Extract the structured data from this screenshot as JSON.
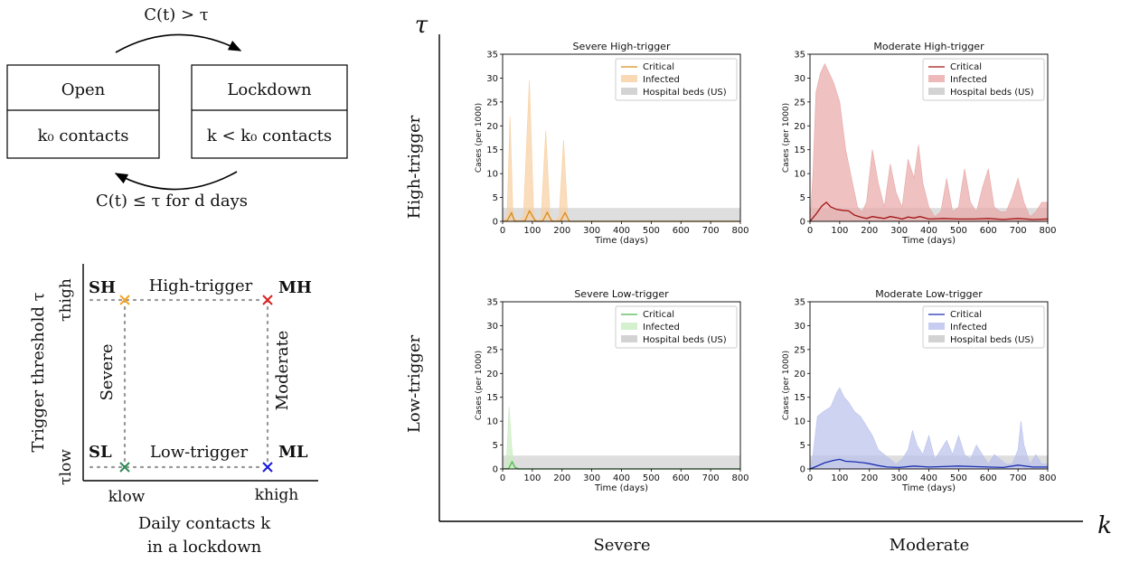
{
  "flow": {
    "arrow_top": "C(t) > τ",
    "arrow_bottom": "C(t) ≤ τ  for d days",
    "open_title": "Open",
    "open_sub": "k₀  contacts",
    "lock_title": "Lockdown",
    "lock_sub": "k < k₀  contacts"
  },
  "scenario": {
    "ylabel": "Trigger threshold τ",
    "xlabel_line1": "Daily contacts k",
    "xlabel_line2": "in a lockdown",
    "tau_high": "τhigh",
    "tau_low": "τlow",
    "k_low": "klow",
    "k_high": "khigh",
    "high_trigger": "High-trigger",
    "low_trigger": "Low-trigger",
    "severe": "Severe",
    "moderate": "Moderate",
    "points": [
      {
        "label": "SH",
        "color": "#f5a623"
      },
      {
        "label": "MH",
        "color": "#dd2222"
      },
      {
        "label": "SL",
        "color": "#2e8b57"
      },
      {
        "label": "ML",
        "color": "#1a1adc"
      }
    ]
  },
  "grid": {
    "tau_axis": "τ",
    "k_axis": "k",
    "row_high": "High-trigger",
    "row_low": "Low-trigger",
    "col_severe": "Severe",
    "col_moderate": "Moderate"
  },
  "chart_data": [
    {
      "type": "area",
      "title": "Severe High-trigger",
      "xlabel": "Time (days)",
      "ylabel": "Cases (per 1000)",
      "xlim": [
        0,
        800
      ],
      "ylim": [
        0,
        35
      ],
      "xticks": [
        0,
        100,
        200,
        300,
        400,
        500,
        600,
        700,
        800
      ],
      "yticks": [
        0,
        5,
        10,
        15,
        20,
        25,
        30,
        35
      ],
      "color_infected": "#f7cfa0",
      "color_critical": "#d98c1a",
      "hospital_beds": 2.8,
      "legend": [
        "Critical",
        "Infected",
        "Hospital beds (US)"
      ],
      "infected": {
        "x": [
          0,
          15,
          25,
          35,
          50,
          70,
          90,
          105,
          120,
          130,
          145,
          160,
          175,
          190,
          205,
          220,
          800
        ],
        "y": [
          0,
          1,
          22,
          1,
          0,
          1,
          29.5,
          1,
          0,
          1,
          19,
          0.8,
          0,
          1,
          17,
          0,
          0
        ]
      },
      "critical": {
        "x": [
          0,
          15,
          30,
          40,
          60,
          75,
          90,
          110,
          125,
          135,
          150,
          165,
          180,
          195,
          210,
          225,
          800
        ],
        "y": [
          0,
          0.1,
          1.8,
          0.1,
          0,
          0.1,
          2.2,
          0.1,
          0,
          0.1,
          1.9,
          0.1,
          0,
          0.1,
          1.8,
          0,
          0
        ]
      }
    },
    {
      "type": "area",
      "title": "Moderate High-trigger",
      "xlabel": "Time (days)",
      "ylabel": "Cases (per 1000)",
      "xlim": [
        0,
        800
      ],
      "ylim": [
        0,
        35
      ],
      "xticks": [
        0,
        100,
        200,
        300,
        400,
        500,
        600,
        700,
        800
      ],
      "yticks": [
        0,
        5,
        10,
        15,
        20,
        25,
        30,
        35
      ],
      "color_infected": "#e8a7a7",
      "color_critical": "#a31515",
      "hospital_beds": 2.8,
      "legend": [
        "Critical",
        "Infected",
        "Hospital beds (US)"
      ],
      "infected": {
        "x": [
          0,
          10,
          20,
          35,
          50,
          65,
          80,
          100,
          120,
          140,
          160,
          175,
          190,
          210,
          230,
          250,
          270,
          290,
          310,
          330,
          350,
          365,
          380,
          400,
          420,
          440,
          460,
          480,
          500,
          520,
          540,
          560,
          580,
          600,
          620,
          640,
          660,
          680,
          700,
          720,
          740,
          760,
          780,
          800
        ],
        "y": [
          0,
          10,
          27,
          31,
          33,
          31,
          29,
          25,
          15,
          9,
          3,
          2,
          4,
          15,
          8,
          3,
          12,
          6,
          3,
          13,
          9,
          16,
          8,
          3,
          1,
          2,
          9,
          2,
          3,
          11,
          4,
          2,
          7,
          11,
          3,
          2,
          2,
          5,
          9,
          4,
          1,
          2,
          4,
          4
        ]
      },
      "critical": {
        "x": [
          0,
          20,
          40,
          55,
          70,
          90,
          110,
          130,
          150,
          170,
          190,
          210,
          230,
          250,
          270,
          290,
          310,
          330,
          350,
          370,
          400,
          450,
          500,
          550,
          600,
          650,
          700,
          750,
          800
        ],
        "y": [
          0,
          1.5,
          3.2,
          4,
          3,
          2.5,
          2.3,
          2.2,
          1.3,
          0.9,
          0.6,
          1,
          0.8,
          0.6,
          1,
          0.8,
          0.5,
          0.9,
          0.7,
          1,
          0.5,
          0.6,
          0.5,
          0.5,
          0.6,
          0.4,
          0.6,
          0.4,
          0.5
        ]
      }
    },
    {
      "type": "area",
      "title": "Severe Low-trigger",
      "xlabel": "Time (days)",
      "ylabel": "Cases (per 1000)",
      "xlim": [
        0,
        800
      ],
      "ylim": [
        0,
        35
      ],
      "xticks": [
        0,
        100,
        200,
        300,
        400,
        500,
        600,
        700,
        800
      ],
      "yticks": [
        0,
        5,
        10,
        15,
        20,
        25,
        30,
        35
      ],
      "color_infected": "#c9ecc0",
      "color_critical": "#4cb84c",
      "hospital_beds": 2.8,
      "legend": [
        "Critical",
        "Infected",
        "Hospital beds (US)"
      ],
      "infected": {
        "x": [
          0,
          12,
          22,
          30,
          38,
          50,
          800
        ],
        "y": [
          0,
          0.5,
          13,
          5,
          0.5,
          0,
          0
        ]
      },
      "critical": {
        "x": [
          0,
          20,
          32,
          42,
          55,
          800
        ],
        "y": [
          0,
          0.1,
          1.5,
          0.3,
          0,
          0
        ]
      }
    },
    {
      "type": "area",
      "title": "Moderate Low-trigger",
      "xlabel": "Time (days)",
      "ylabel": "Cases (per 1000)",
      "xlim": [
        0,
        800
      ],
      "ylim": [
        0,
        35
      ],
      "xticks": [
        0,
        100,
        200,
        300,
        400,
        500,
        600,
        700,
        800
      ],
      "yticks": [
        0,
        5,
        10,
        15,
        20,
        25,
        30,
        35
      ],
      "color_infected": "#b9c1ec",
      "color_critical": "#1a2fb0",
      "hospital_beds": 2.8,
      "legend": [
        "Critical",
        "Infected",
        "Hospital beds (US)"
      ],
      "infected": {
        "x": [
          0,
          10,
          25,
          45,
          70,
          90,
          100,
          115,
          130,
          150,
          170,
          190,
          210,
          230,
          250,
          270,
          290,
          310,
          330,
          345,
          360,
          380,
          400,
          420,
          440,
          460,
          480,
          500,
          520,
          540,
          560,
          580,
          600,
          620,
          640,
          660,
          680,
          700,
          710,
          720,
          740,
          760,
          780,
          800
        ],
        "y": [
          0,
          3,
          11,
          12,
          13,
          16,
          17,
          15,
          14,
          12,
          11,
          9,
          7,
          4,
          3,
          2,
          1,
          2,
          4,
          8,
          5,
          3,
          7,
          2,
          4,
          6,
          3,
          7,
          3,
          2,
          5,
          3,
          1,
          3,
          2,
          1,
          1,
          4,
          10,
          5,
          1,
          3,
          1,
          1
        ]
      },
      "critical": {
        "x": [
          0,
          20,
          50,
          80,
          100,
          120,
          150,
          180,
          200,
          230,
          260,
          300,
          350,
          400,
          450,
          500,
          550,
          600,
          650,
          700,
          750,
          800
        ],
        "y": [
          0,
          0.5,
          1.3,
          1.8,
          2,
          1.6,
          1.5,
          1.3,
          1.1,
          0.7,
          0.4,
          0.3,
          0.6,
          0.4,
          0.5,
          0.6,
          0.5,
          0.4,
          0.3,
          0.8,
          0.4,
          0.4
        ]
      }
    }
  ]
}
